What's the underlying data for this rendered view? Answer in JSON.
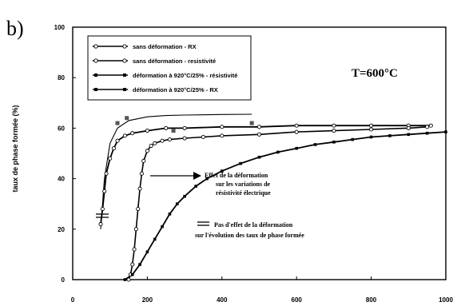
{
  "panel_label": "b)",
  "chart_data": {
    "type": "line",
    "title": "",
    "xlabel": "",
    "ylabel": "taux de phase formée (%)",
    "xlim": [
      0,
      1000
    ],
    "ylim": [
      0,
      100
    ],
    "x_ticks": [
      "0",
      "200",
      "400",
      "600",
      "800",
      "1000"
    ],
    "y_ticks": [
      "0",
      "20",
      "40",
      "60",
      "80",
      "100"
    ],
    "grid": false,
    "legend_position": "top-left",
    "series": [
      {
        "name": "sans déformation - RX",
        "marker": "circle-open",
        "x": [
          75,
          80,
          85,
          90,
          100,
          110,
          120,
          140,
          160,
          200,
          250,
          300,
          400,
          500,
          600,
          700,
          800,
          900,
          960
        ],
        "y": [
          22,
          28,
          35,
          42,
          48,
          52,
          55,
          57,
          58,
          59,
          60,
          60,
          60.5,
          60.5,
          61,
          61,
          61,
          61,
          61
        ]
      },
      {
        "name": "sans déformation - resistivité",
        "marker": "circle-open",
        "x": [
          150,
          155,
          160,
          165,
          170,
          175,
          180,
          185,
          190,
          200,
          210,
          220,
          240,
          260,
          300,
          350,
          400,
          500,
          600,
          700,
          800,
          900,
          950
        ],
        "y": [
          0,
          2,
          6,
          12,
          20,
          28,
          36,
          42,
          47,
          51,
          53,
          54,
          55,
          55.5,
          56,
          56.5,
          57,
          57.5,
          58.5,
          59,
          59.5,
          60,
          60.5
        ]
      },
      {
        "name": "déformation à 920°C/25% - résistivité",
        "marker": "square-filled",
        "x": [
          140,
          160,
          180,
          200,
          220,
          240,
          260,
          280,
          300,
          330,
          360,
          400,
          450,
          500,
          550,
          600,
          650,
          700,
          750,
          800,
          850,
          900,
          950,
          1000
        ],
        "y": [
          0,
          2,
          6,
          11,
          16,
          21,
          26,
          30,
          33,
          37,
          40,
          43,
          46,
          48.5,
          50.5,
          52,
          53.5,
          54.5,
          55.5,
          56.5,
          57,
          57.5,
          58,
          58.5
        ]
      },
      {
        "name": "déformation à 920°C/25% - RX",
        "marker": "square-filled",
        "x": [
          120,
          145,
          270,
          480
        ],
        "y": [
          62,
          64,
          59,
          62
        ]
      }
    ],
    "extra_curve": {
      "x": [
        75,
        85,
        100,
        120,
        150,
        200,
        250,
        300,
        400,
        480
      ],
      "y": [
        20,
        40,
        54,
        60,
        63,
        64.5,
        65,
        65.2,
        65.4,
        65.5
      ]
    },
    "series2_dashed_extension": {
      "x": [
        270,
        350,
        400,
        450,
        500
      ],
      "y": [
        60.5,
        61,
        61,
        61,
        61
      ]
    },
    "annotations": [
      {
        "lines": [
          "Effet de la déformation",
          "sur les variations de",
          "résistivité électrique"
        ]
      },
      {
        "lines": [
          "Pas d'effet de la déformation",
          "sur l'évolution des taux de phase formée"
        ]
      }
    ],
    "temperature_label": "T=600°C"
  }
}
